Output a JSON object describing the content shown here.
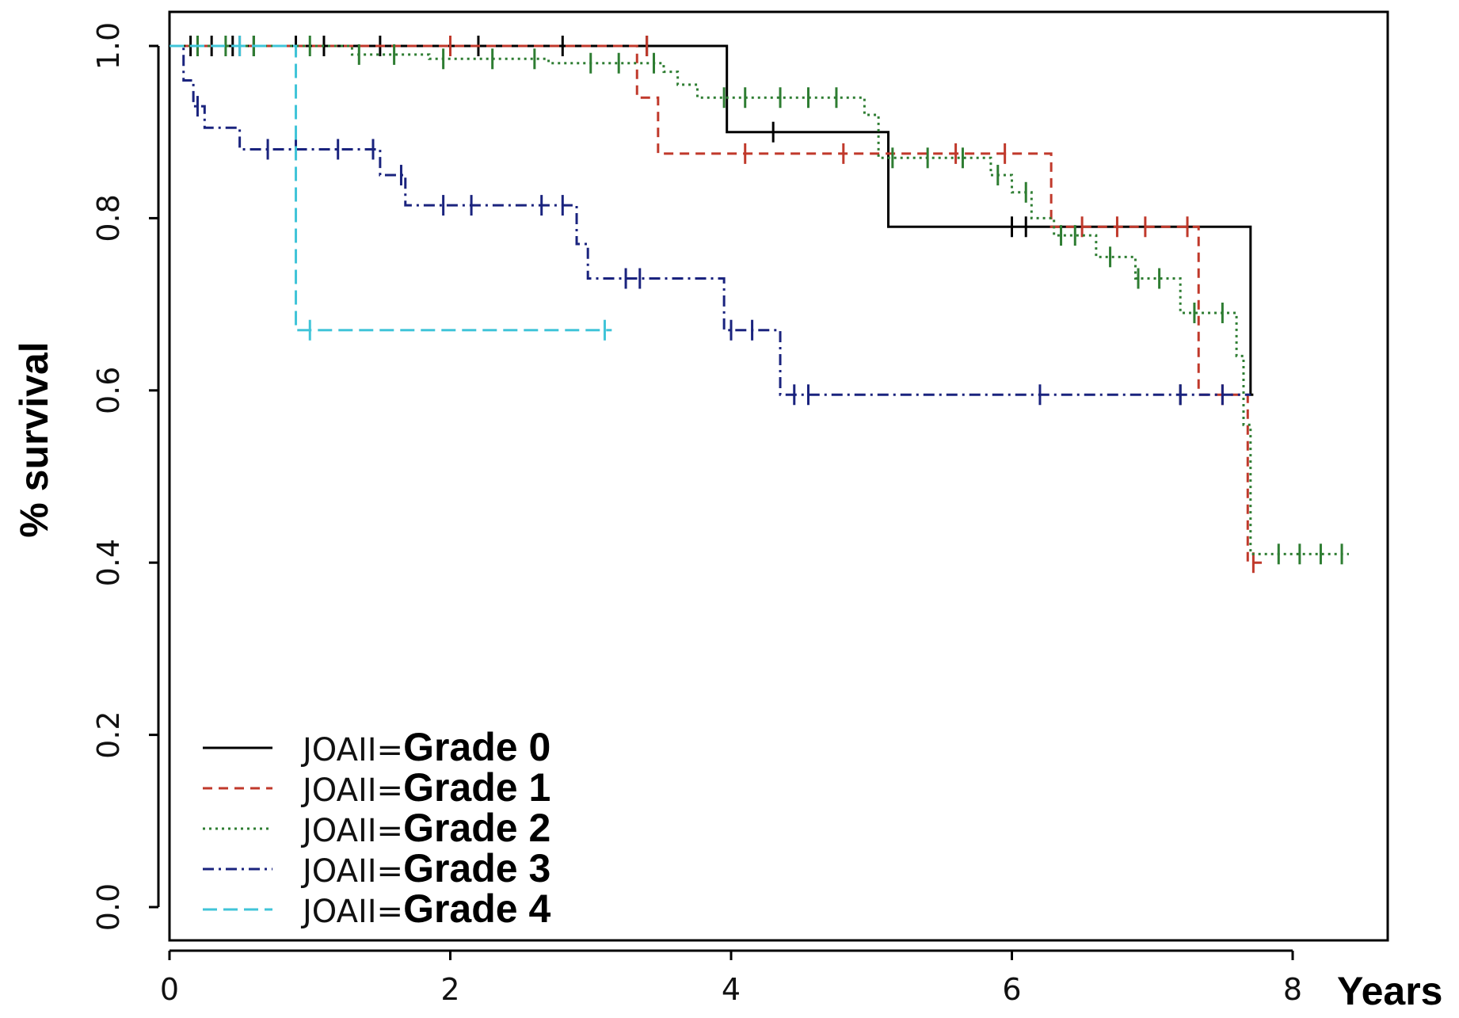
{
  "chart_data": {
    "type": "line",
    "title": "",
    "xlabel": "Years",
    "ylabel": "% survival",
    "xlim": [
      0,
      8.5
    ],
    "ylim": [
      0,
      1.0
    ],
    "xticks": [
      0,
      2,
      4,
      6,
      8
    ],
    "xtick_labels": [
      "0",
      "2",
      "4",
      "6",
      "8"
    ],
    "yticks": [
      0.0,
      0.2,
      0.4,
      0.6,
      0.8,
      1.0
    ],
    "ytick_labels": [
      "0.0",
      "0.2",
      "0.4",
      "0.6",
      "0.8",
      "1.0"
    ],
    "grid": false,
    "legend_position": "bottom-left",
    "series": [
      {
        "name": "JOAII=Grade 0",
        "label_prefix": "JOAII=",
        "label_grade": "Grade 0",
        "color": "#000000",
        "dash": "none",
        "steps": [
          [
            0,
            1.0
          ],
          [
            3.97,
            0.9
          ],
          [
            5.12,
            0.79
          ],
          [
            6.2,
            0.79
          ],
          [
            7.7,
            0.595
          ]
        ],
        "end_x": 7.72,
        "censors": [
          [
            0.15,
            1.0
          ],
          [
            0.3,
            1.0
          ],
          [
            0.45,
            1.0
          ],
          [
            0.6,
            1.0
          ],
          [
            0.9,
            1.0
          ],
          [
            1.1,
            1.0
          ],
          [
            1.5,
            1.0
          ],
          [
            2.2,
            1.0
          ],
          [
            2.8,
            1.0
          ],
          [
            3.4,
            1.0
          ],
          [
            4.3,
            0.9
          ],
          [
            6.0,
            0.79
          ],
          [
            6.1,
            0.79
          ],
          [
            7.2,
            0.595
          ]
        ]
      },
      {
        "name": "JOAII=Grade 1",
        "label_prefix": "JOAII=",
        "label_grade": "Grade 1",
        "color": "#c0392b",
        "dash": "12,8",
        "steps": [
          [
            0,
            1.0
          ],
          [
            3.33,
            0.94
          ],
          [
            3.48,
            0.875
          ],
          [
            6.28,
            0.79
          ],
          [
            7.33,
            0.595
          ],
          [
            7.68,
            0.4
          ]
        ],
        "end_x": 7.78,
        "censors": [
          [
            0.2,
            1.0
          ],
          [
            0.5,
            1.0
          ],
          [
            2.0,
            1.0
          ],
          [
            3.4,
            1.0
          ],
          [
            4.1,
            0.875
          ],
          [
            4.8,
            0.875
          ],
          [
            5.6,
            0.875
          ],
          [
            5.95,
            0.875
          ],
          [
            6.5,
            0.79
          ],
          [
            6.75,
            0.79
          ],
          [
            6.95,
            0.79
          ],
          [
            7.25,
            0.79
          ],
          [
            7.5,
            0.595
          ],
          [
            7.72,
            0.4
          ]
        ]
      },
      {
        "name": "JOAII=Grade 2",
        "label_prefix": "JOAII=",
        "label_grade": "Grade 2",
        "color": "#2e7d32",
        "dash": "3,5",
        "steps": [
          [
            0,
            1.0
          ],
          [
            1.3,
            0.99
          ],
          [
            1.85,
            0.985
          ],
          [
            2.7,
            0.98
          ],
          [
            3.52,
            0.97
          ],
          [
            3.62,
            0.955
          ],
          [
            3.76,
            0.94
          ],
          [
            4.95,
            0.92
          ],
          [
            5.05,
            0.87
          ],
          [
            5.85,
            0.85
          ],
          [
            6.0,
            0.83
          ],
          [
            6.14,
            0.8
          ],
          [
            6.3,
            0.78
          ],
          [
            6.6,
            0.755
          ],
          [
            6.88,
            0.73
          ],
          [
            7.2,
            0.69
          ],
          [
            7.6,
            0.64
          ],
          [
            7.65,
            0.56
          ],
          [
            7.7,
            0.41
          ]
        ],
        "end_x": 8.4,
        "censors": [
          [
            0.2,
            1.0
          ],
          [
            0.4,
            1.0
          ],
          [
            0.6,
            1.0
          ],
          [
            1.0,
            1.0
          ],
          [
            1.35,
            0.99
          ],
          [
            1.6,
            0.99
          ],
          [
            1.95,
            0.985
          ],
          [
            2.3,
            0.985
          ],
          [
            2.6,
            0.985
          ],
          [
            3.0,
            0.98
          ],
          [
            3.2,
            0.98
          ],
          [
            3.45,
            0.98
          ],
          [
            3.95,
            0.94
          ],
          [
            4.1,
            0.94
          ],
          [
            4.35,
            0.94
          ],
          [
            4.55,
            0.94
          ],
          [
            4.75,
            0.94
          ],
          [
            5.15,
            0.87
          ],
          [
            5.4,
            0.87
          ],
          [
            5.65,
            0.87
          ],
          [
            5.9,
            0.85
          ],
          [
            6.1,
            0.83
          ],
          [
            6.35,
            0.78
          ],
          [
            6.45,
            0.78
          ],
          [
            6.7,
            0.755
          ],
          [
            6.9,
            0.73
          ],
          [
            7.05,
            0.73
          ],
          [
            7.3,
            0.69
          ],
          [
            7.5,
            0.69
          ],
          [
            7.9,
            0.41
          ],
          [
            8.05,
            0.41
          ],
          [
            8.2,
            0.41
          ],
          [
            8.35,
            0.41
          ]
        ]
      },
      {
        "name": "JOAII=Grade 3",
        "label_prefix": "JOAII=",
        "label_grade": "Grade 3",
        "color": "#1a237e",
        "dash": "14,6,3,6",
        "steps": [
          [
            0,
            1.0
          ],
          [
            0.1,
            0.96
          ],
          [
            0.17,
            0.93
          ],
          [
            0.25,
            0.905
          ],
          [
            0.5,
            0.88
          ],
          [
            1.5,
            0.85
          ],
          [
            1.68,
            0.815
          ],
          [
            2.9,
            0.77
          ],
          [
            2.98,
            0.73
          ],
          [
            3.95,
            0.67
          ],
          [
            4.35,
            0.595
          ]
        ],
        "end_x": 7.7,
        "censors": [
          [
            0.2,
            0.93
          ],
          [
            0.7,
            0.88
          ],
          [
            0.9,
            0.88
          ],
          [
            1.2,
            0.88
          ],
          [
            1.45,
            0.88
          ],
          [
            1.65,
            0.85
          ],
          [
            1.95,
            0.815
          ],
          [
            2.15,
            0.815
          ],
          [
            2.65,
            0.815
          ],
          [
            2.8,
            0.815
          ],
          [
            3.25,
            0.73
          ],
          [
            3.35,
            0.73
          ],
          [
            4.0,
            0.67
          ],
          [
            4.15,
            0.67
          ],
          [
            4.45,
            0.595
          ],
          [
            4.55,
            0.595
          ],
          [
            6.2,
            0.595
          ],
          [
            7.2,
            0.595
          ],
          [
            7.5,
            0.595
          ]
        ]
      },
      {
        "name": "JOAII=Grade 4",
        "label_prefix": "JOAII=",
        "label_grade": "Grade 4",
        "color": "#40c4d8",
        "dash": "18,8",
        "steps": [
          [
            0,
            1.0
          ],
          [
            0.9,
            0.67
          ]
        ],
        "end_x": 3.15,
        "censors": [
          [
            0.5,
            1.0
          ],
          [
            1.0,
            0.67
          ],
          [
            3.1,
            0.67
          ]
        ]
      }
    ]
  }
}
